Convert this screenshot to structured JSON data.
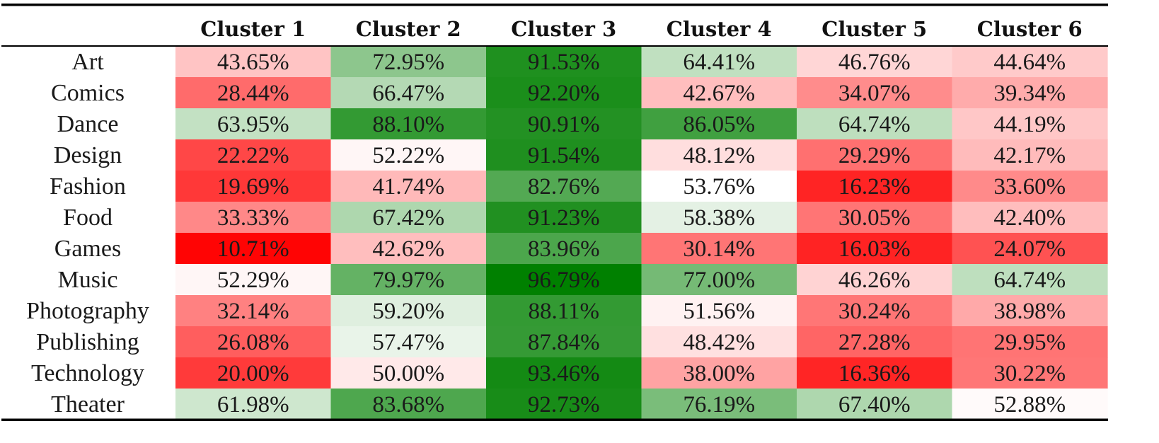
{
  "chart_data": {
    "type": "heatmap",
    "columns": [
      "Cluster 1",
      "Cluster 2",
      "Cluster 3",
      "Cluster 4",
      "Cluster 5",
      "Cluster 6"
    ],
    "rows": [
      "Art",
      "Comics",
      "Dance",
      "Design",
      "Fashion",
      "Food",
      "Games",
      "Music",
      "Photography",
      "Publishing",
      "Technology",
      "Theater"
    ],
    "values": [
      [
        43.65,
        72.95,
        91.53,
        64.41,
        46.76,
        44.64
      ],
      [
        28.44,
        66.47,
        92.2,
        42.67,
        34.07,
        39.34
      ],
      [
        63.95,
        88.1,
        90.91,
        86.05,
        64.74,
        44.19
      ],
      [
        22.22,
        52.22,
        91.54,
        48.12,
        29.29,
        42.17
      ],
      [
        19.69,
        41.74,
        82.76,
        53.76,
        16.23,
        33.6
      ],
      [
        33.33,
        67.42,
        91.23,
        58.38,
        30.05,
        42.4
      ],
      [
        10.71,
        42.62,
        83.96,
        30.14,
        16.03,
        24.07
      ],
      [
        52.29,
        79.97,
        96.79,
        77.0,
        46.26,
        64.74
      ],
      [
        32.14,
        59.2,
        88.11,
        51.56,
        30.24,
        38.98
      ],
      [
        26.08,
        57.47,
        87.84,
        48.42,
        27.28,
        29.95
      ],
      [
        20.0,
        50.0,
        93.46,
        38.0,
        16.36,
        30.22
      ],
      [
        61.98,
        83.68,
        92.73,
        76.19,
        67.4,
        52.88
      ]
    ],
    "labels": [
      [
        "43.65%",
        "72.95%",
        "91.53%",
        "64.41%",
        "46.76%",
        "44.64%"
      ],
      [
        "28.44%",
        "66.47%",
        "92.20%",
        "42.67%",
        "34.07%",
        "39.34%"
      ],
      [
        "63.95%",
        "88.10%",
        "90.91%",
        "86.05%",
        "64.74%",
        "44.19%"
      ],
      [
        "22.22%",
        "52.22%",
        "91.54%",
        "48.12%",
        "29.29%",
        "42.17%"
      ],
      [
        "19.69%",
        "41.74%",
        "82.76%",
        "53.76%",
        "16.23%",
        "33.60%"
      ],
      [
        "33.33%",
        "67.42%",
        "91.23%",
        "58.38%",
        "30.05%",
        "42.40%"
      ],
      [
        "10.71%",
        "42.62%",
        "83.96%",
        "30.14%",
        "16.03%",
        "24.07%"
      ],
      [
        "52.29%",
        "79.97%",
        "96.79%",
        "77.00%",
        "46.26%",
        "64.74%"
      ],
      [
        "32.14%",
        "59.20%",
        "88.11%",
        "51.56%",
        "30.24%",
        "38.98%"
      ],
      [
        "26.08%",
        "57.47%",
        "87.84%",
        "48.42%",
        "27.28%",
        "29.95%"
      ],
      [
        "20.00%",
        "50.00%",
        "93.46%",
        "38.00%",
        "16.36%",
        "30.22%"
      ],
      [
        "61.98%",
        "83.68%",
        "92.73%",
        "76.19%",
        "67.40%",
        "52.88%"
      ]
    ],
    "color_scale": {
      "low_color": "#ff0000",
      "mid_color": "#ffffff",
      "high_color": "#008000",
      "low_value": 10,
      "mid_value": 53.76,
      "high_value": 96.79
    },
    "title": "",
    "xlabel": "",
    "ylabel": "",
    "grid": false,
    "legend": "none"
  }
}
